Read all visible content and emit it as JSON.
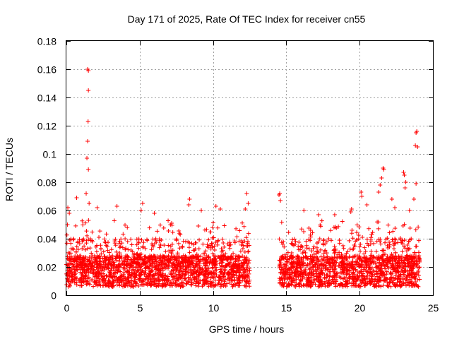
{
  "chart_data": {
    "type": "scatter",
    "title": "Day 171 of 2025, Rate Of TEC Index for receiver cn55",
    "xlabel": "GPS time / hours",
    "ylabel": "ROTI / TECUs",
    "xlim": [
      0,
      25
    ],
    "ylim": [
      0,
      0.18
    ],
    "xticks": [
      "0",
      "5",
      "10",
      "15",
      "20",
      "25"
    ],
    "yticks": [
      "0",
      "0.02",
      "0.04",
      "0.06",
      "0.08",
      "0.1",
      "0.12",
      "0.14",
      "0.16",
      "0.18"
    ],
    "grid": true,
    "marker": "+",
    "color": "#ff0000",
    "data_gap_hours": [
      12.5,
      14.5
    ],
    "series": [
      {
        "name": "ROTI",
        "points": [
          [
            1.45,
            0.16
          ],
          [
            1.5,
            0.159
          ],
          [
            1.5,
            0.145
          ],
          [
            1.48,
            0.123
          ],
          [
            1.45,
            0.109
          ],
          [
            1.4,
            0.097
          ],
          [
            1.5,
            0.089
          ],
          [
            1.35,
            0.072
          ],
          [
            1.55,
            0.065
          ],
          [
            0.7,
            0.069
          ],
          [
            0.1,
            0.062
          ],
          [
            0.2,
            0.058
          ],
          [
            2.1,
            0.062
          ],
          [
            3.45,
            0.063
          ],
          [
            5.2,
            0.065
          ],
          [
            5.1,
            0.06
          ],
          [
            6.0,
            0.058
          ],
          [
            8.4,
            0.068
          ],
          [
            8.35,
            0.064
          ],
          [
            9.2,
            0.06
          ],
          [
            10.2,
            0.063
          ],
          [
            10.5,
            0.061
          ],
          [
            12.3,
            0.072
          ],
          [
            12.4,
            0.065
          ],
          [
            12.2,
            0.061
          ],
          [
            14.55,
            0.072
          ],
          [
            14.6,
            0.067
          ],
          [
            14.5,
            0.071
          ],
          [
            16.2,
            0.06
          ],
          [
            17.2,
            0.057
          ],
          [
            18.3,
            0.057
          ],
          [
            19.4,
            0.059
          ],
          [
            19.45,
            0.061
          ],
          [
            20.1,
            0.073
          ],
          [
            20.15,
            0.07
          ],
          [
            20.5,
            0.064
          ],
          [
            21.6,
            0.09
          ],
          [
            21.65,
            0.089
          ],
          [
            21.5,
            0.083
          ],
          [
            21.4,
            0.078
          ],
          [
            21.3,
            0.073
          ],
          [
            22.2,
            0.068
          ],
          [
            22.4,
            0.062
          ],
          [
            23.0,
            0.087
          ],
          [
            23.05,
            0.085
          ],
          [
            23.15,
            0.08
          ],
          [
            23.1,
            0.076
          ],
          [
            23.4,
            0.06
          ],
          [
            23.85,
            0.115
          ],
          [
            23.9,
            0.116
          ],
          [
            23.8,
            0.106
          ],
          [
            23.95,
            0.105
          ],
          [
            23.85,
            0.079
          ],
          [
            23.7,
            0.068
          ]
        ]
      }
    ]
  }
}
